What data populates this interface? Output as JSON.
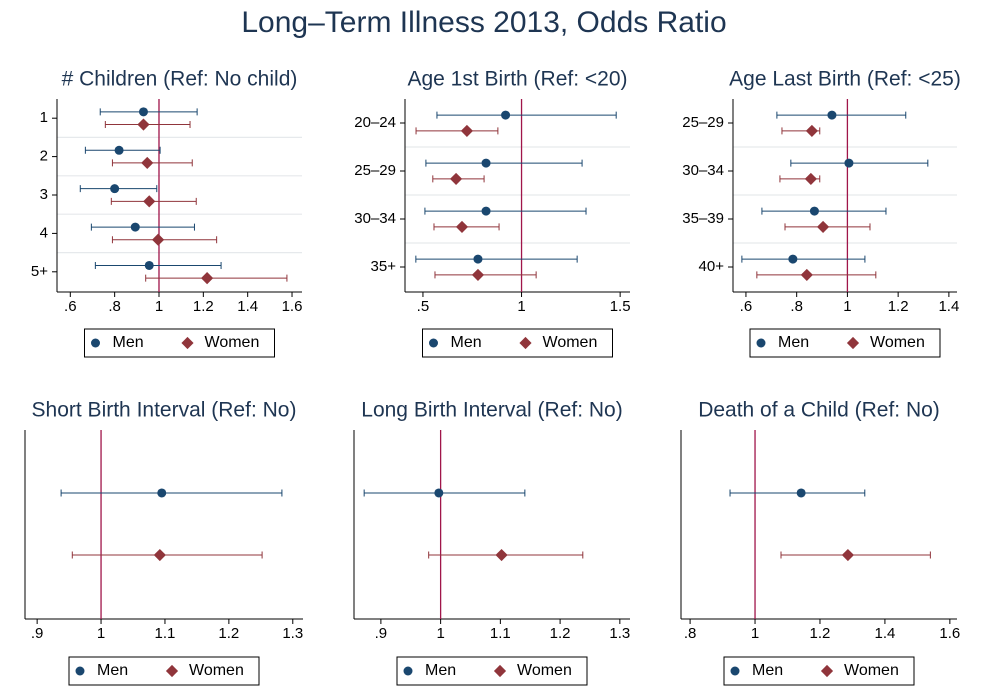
{
  "title": "Long–Term Illness 2013, Odds Ratio",
  "chart_data": [
    {
      "type": "forest",
      "title": "# Children (Ref: No child)",
      "categories": [
        "1",
        "2",
        "3",
        "4",
        "5+"
      ],
      "series": [
        {
          "name": "Men",
          "color": "#1a476f",
          "marker": "circle",
          "values": [
            0.93,
            0.82,
            0.8,
            0.893,
            0.956
          ],
          "lower": [
            0.735,
            0.668,
            0.645,
            0.695,
            0.713
          ],
          "upper": [
            1.172,
            1.005,
            0.99,
            1.16,
            1.28
          ]
        },
        {
          "name": "Women",
          "color": "#90353b",
          "marker": "diamond",
          "values": [
            0.93,
            0.947,
            0.956,
            0.996,
            1.217
          ],
          "lower": [
            0.758,
            0.79,
            0.785,
            0.79,
            0.94
          ],
          "upper": [
            1.14,
            1.15,
            1.168,
            1.26,
            1.577
          ]
        }
      ],
      "xlim": [
        0.54,
        1.645
      ],
      "xticks": [
        {
          "value": 0.6,
          "label": ".6"
        },
        {
          "value": 0.8,
          "label": ".8"
        },
        1,
        1.2,
        1.4,
        1.6
      ],
      "refline": 1
    },
    {
      "type": "forest",
      "title": "Age 1st Birth (Ref: <20)",
      "categories": [
        "20–24",
        "25–29",
        "30–34",
        "35+"
      ],
      "series": [
        {
          "name": "Men",
          "color": "#1a476f",
          "marker": "circle",
          "values": [
            0.919,
            0.82,
            0.82,
            0.779
          ],
          "lower": [
            0.571,
            0.515,
            0.51,
            0.464
          ],
          "upper": [
            1.48,
            1.307,
            1.327,
            1.282
          ]
        },
        {
          "name": "Women",
          "color": "#90353b",
          "marker": "diamond",
          "values": [
            0.723,
            0.668,
            0.698,
            0.779
          ],
          "lower": [
            0.465,
            0.55,
            0.556,
            0.561
          ],
          "upper": [
            0.88,
            0.81,
            0.886,
            1.074
          ]
        }
      ],
      "xlim": [
        0.409,
        1.55
      ],
      "xticks": [
        {
          "value": 0.5,
          "label": ".5"
        },
        1,
        1.5
      ],
      "refline": 1
    },
    {
      "type": "forest",
      "title": "Age Last Birth (Ref: <25)",
      "categories": [
        "25–29",
        "30–34",
        "35–39",
        "40+"
      ],
      "series": [
        {
          "name": "Men",
          "color": "#1a476f",
          "marker": "circle",
          "values": [
            0.939,
            1.006,
            0.87,
            0.785
          ],
          "lower": [
            0.722,
            0.777,
            0.663,
            0.584
          ],
          "upper": [
            1.23,
            1.317,
            1.152,
            1.069
          ]
        },
        {
          "name": "Women",
          "color": "#90353b",
          "marker": "diamond",
          "values": [
            0.86,
            0.856,
            0.904,
            0.84
          ],
          "lower": [
            0.742,
            0.734,
            0.754,
            0.643
          ],
          "upper": [
            0.891,
            0.891,
            1.089,
            1.112
          ]
        }
      ],
      "xlim": [
        0.549,
        1.432
      ],
      "xticks": [
        {
          "value": 0.6,
          "label": ".6"
        },
        {
          "value": 0.8,
          "label": ".8"
        },
        1,
        1.2,
        1.4
      ],
      "refline": 1
    },
    {
      "type": "forest",
      "title": "Short Birth Interval (Ref: No)",
      "categories": [
        null
      ],
      "series": [
        {
          "name": "Men",
          "color": "#1a476f",
          "marker": "circle",
          "values": [
            1.095
          ],
          "lower": [
            0.9375
          ],
          "upper": [
            1.283
          ]
        },
        {
          "name": "Women",
          "color": "#90353b",
          "marker": "diamond",
          "values": [
            1.092
          ],
          "lower": [
            0.955
          ],
          "upper": [
            1.252
          ]
        }
      ],
      "xlim": [
        0.881,
        1.316
      ],
      "xticks": [
        {
          "value": 0.9,
          "label": ".9"
        },
        1,
        1.1,
        1.2,
        1.3
      ],
      "refline": 1
    },
    {
      "type": "forest",
      "title": "Long Birth Interval (Ref: No)",
      "categories": [
        null
      ],
      "series": [
        {
          "name": "Men",
          "color": "#1a476f",
          "marker": "circle",
          "values": [
            0.997
          ],
          "lower": [
            0.872
          ],
          "upper": [
            1.141
          ]
        },
        {
          "name": "Women",
          "color": "#90353b",
          "marker": "diamond",
          "values": [
            1.102
          ],
          "lower": [
            0.98
          ],
          "upper": [
            1.238
          ]
        }
      ],
      "xlim": [
        0.855,
        1.317
      ],
      "xticks": [
        {
          "value": 0.9,
          "label": ".9"
        },
        1,
        1.1,
        1.2,
        1.3
      ],
      "refline": 1
    },
    {
      "type": "forest",
      "title": "Death of a Child (Ref: No)",
      "categories": [
        null
      ],
      "series": [
        {
          "name": "Men",
          "color": "#1a476f",
          "marker": "circle",
          "values": [
            1.142
          ],
          "lower": [
            0.923
          ],
          "upper": [
            1.338
          ]
        },
        {
          "name": "Women",
          "color": "#90353b",
          "marker": "diamond",
          "values": [
            1.286
          ],
          "lower": [
            1.08
          ],
          "upper": [
            1.54
          ]
        }
      ],
      "xlim": [
        0.772,
        1.622
      ],
      "xticks": [
        {
          "value": 0.8,
          "label": ".8"
        },
        1,
        1.2,
        1.4,
        1.6
      ],
      "refline": 1
    }
  ]
}
